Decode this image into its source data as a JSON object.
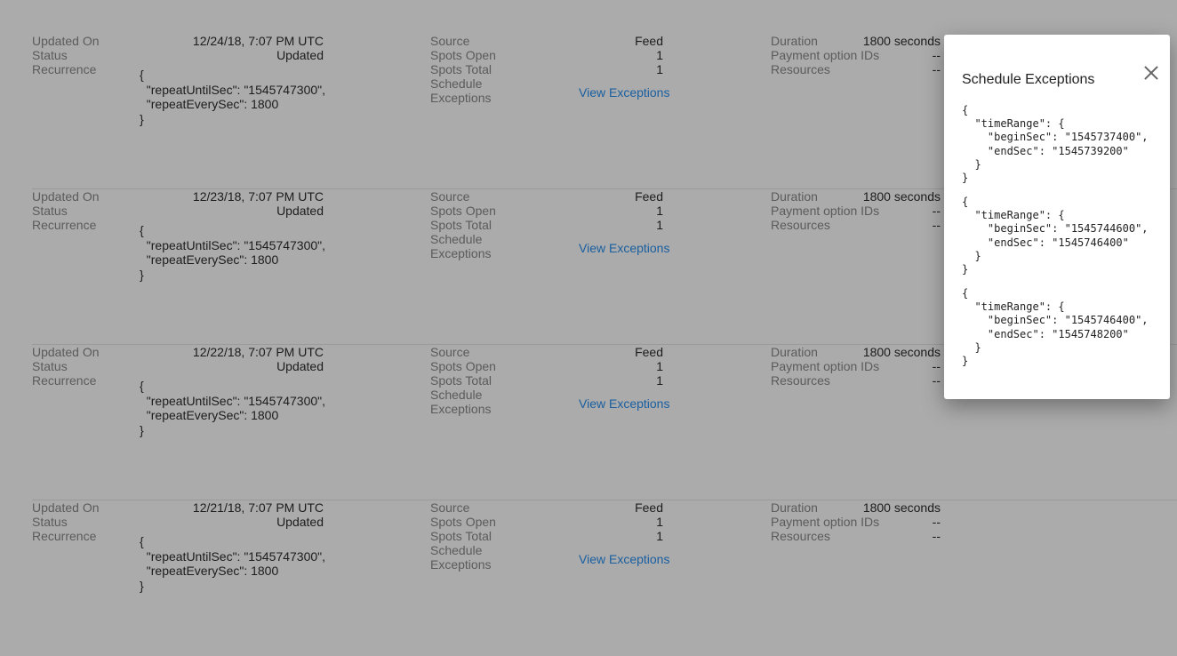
{
  "labels": {
    "updated_on": "Updated On",
    "status": "Status",
    "recurrence": "Recurrence",
    "source": "Source",
    "spots_open": "Spots Open",
    "spots_total": "Spots Total",
    "schedule_exceptions": "Schedule\nExceptions",
    "duration": "Duration",
    "payment_option_ids": "Payment option IDs",
    "resources": "Resources",
    "view_exceptions": "View Exceptions"
  },
  "rows": [
    {
      "updated_on": "12/24/18, 7:07 PM UTC",
      "status": "Updated",
      "recurrence": "{\n  \"repeatUntilSec\": \"1545747300\",\n  \"repeatEverySec\": 1800\n}",
      "source": "Feed",
      "spots_open": "1",
      "spots_total": "1",
      "duration": "1800 seconds",
      "payment_option_ids": "--",
      "resources": "--"
    },
    {
      "updated_on": "12/23/18, 7:07 PM UTC",
      "status": "Updated",
      "recurrence": "{\n  \"repeatUntilSec\": \"1545747300\",\n  \"repeatEverySec\": 1800\n}",
      "source": "Feed",
      "spots_open": "1",
      "spots_total": "1",
      "duration": "1800 seconds",
      "payment_option_ids": "--",
      "resources": "--"
    },
    {
      "updated_on": "12/22/18, 7:07 PM UTC",
      "status": "Updated",
      "recurrence": "{\n  \"repeatUntilSec\": \"1545747300\",\n  \"repeatEverySec\": 1800\n}",
      "source": "Feed",
      "spots_open": "1",
      "spots_total": "1",
      "duration": "1800 seconds",
      "payment_option_ids": "--",
      "resources": "--"
    },
    {
      "updated_on": "12/21/18, 7:07 PM UTC",
      "status": "Updated",
      "recurrence": "{\n  \"repeatUntilSec\": \"1545747300\",\n  \"repeatEverySec\": 1800\n}",
      "source": "Feed",
      "spots_open": "1",
      "spots_total": "1",
      "duration": "1800 seconds",
      "payment_option_ids": "--",
      "resources": "--"
    }
  ],
  "modal": {
    "title": "Schedule Exceptions",
    "exceptions": [
      "{\n  \"timeRange\": {\n    \"beginSec\": \"1545737400\",\n    \"endSec\": \"1545739200\"\n  }\n}",
      "{\n  \"timeRange\": {\n    \"beginSec\": \"1545744600\",\n    \"endSec\": \"1545746400\"\n  }\n}",
      "{\n  \"timeRange\": {\n    \"beginSec\": \"1545746400\",\n    \"endSec\": \"1545748200\"\n  }\n}"
    ]
  },
  "colors": {
    "overlay_bg": "#ababab",
    "link": "#1a5fa0"
  }
}
